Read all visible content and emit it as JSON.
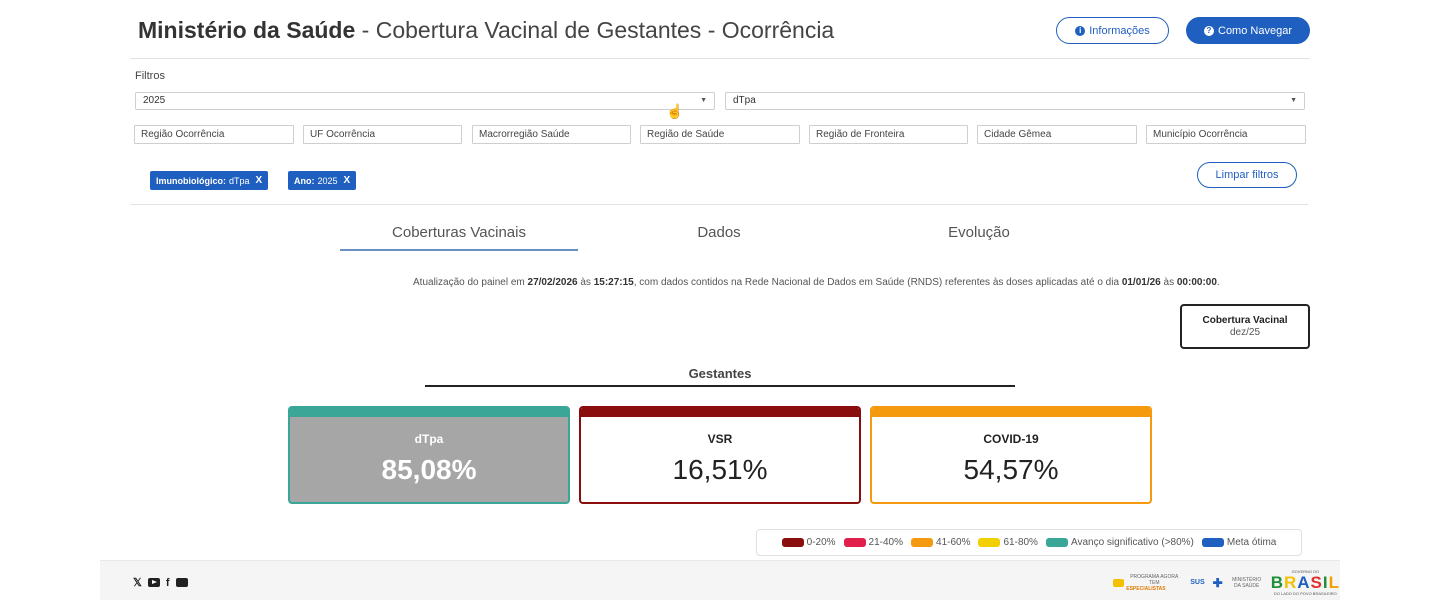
{
  "header": {
    "title_strong": "Ministério da Saúde",
    "title_rest": " - Cobertura Vacinal de Gestantes - Ocorrência",
    "info_button": "Informações",
    "help_button": "Como Navegar"
  },
  "filters": {
    "label": "Filtros",
    "year_select": "2025",
    "vaccine_select": "dTpa",
    "boxes": [
      "Região Ocorrência",
      "UF Ocorrência",
      "Macrorregião Saúde",
      "Região de Saúde",
      "Região de Fronteira",
      "Cidade Gêmea",
      "Município Ocorrência"
    ],
    "chips": [
      {
        "key": "Imunobiológico:",
        "value": "dTpa",
        "x": "X"
      },
      {
        "key": "Ano:",
        "value": "2025",
        "x": "X"
      }
    ],
    "clear_button": "Limpar filtros"
  },
  "tabs": [
    "Coberturas Vacinais",
    "Dados",
    "Evolução"
  ],
  "update": {
    "p1": "Atualização do painel em ",
    "date1": "27/02/2026",
    "p2": " às ",
    "time1": "15:27:15",
    "p3": ", com dados contidos na Rede Nacional de Dados em Saúde (RNDS) referentes às doses aplicadas até o dia ",
    "date2": "01/01/26",
    "p4": " às ",
    "time2": "00:00:00",
    "p5": "."
  },
  "coverage_box": {
    "title": "Cobertura Vacinal",
    "period": "dez/25"
  },
  "section_title": "Gestantes",
  "cards": [
    {
      "label": "dTpa",
      "value": "85,08%",
      "color": "#3aa697"
    },
    {
      "label": "VSR",
      "value": "16,51%",
      "color": "#8b0e0e"
    },
    {
      "label": "COVID-19",
      "value": "54,57%",
      "color": "#f5990f"
    }
  ],
  "legend": [
    {
      "label": "0-20%",
      "color": "#8b0e0e"
    },
    {
      "label": "21-40%",
      "color": "#e0204a"
    },
    {
      "label": "41-60%",
      "color": "#f5990f"
    },
    {
      "label": "61-80%",
      "color": "#f2d000"
    },
    {
      "label": "Avanço significativo (>80%)",
      "color": "#3aa697"
    },
    {
      "label": "Meta ótima",
      "color": "#1f5fbf"
    }
  ],
  "footer": {
    "social_icons": [
      "x-icon",
      "youtube-icon",
      "facebook-icon",
      "flickr-icon"
    ],
    "x_glyph": "𝕏",
    "fb_glyph": "f",
    "logo_especialistas_top": "PROGRAMA AGORA TEM",
    "logo_especialistas": "ESPECIALISTAS",
    "logo_sus": "SUS",
    "logo_ministerio": "MINISTÉRIO DA SAÚDE",
    "logo_governo": "GOVERNO DO",
    "logo_brasil": "BRASIL",
    "logo_brasil_sub": "DO LADO DO POVO BRASILEIRO"
  }
}
